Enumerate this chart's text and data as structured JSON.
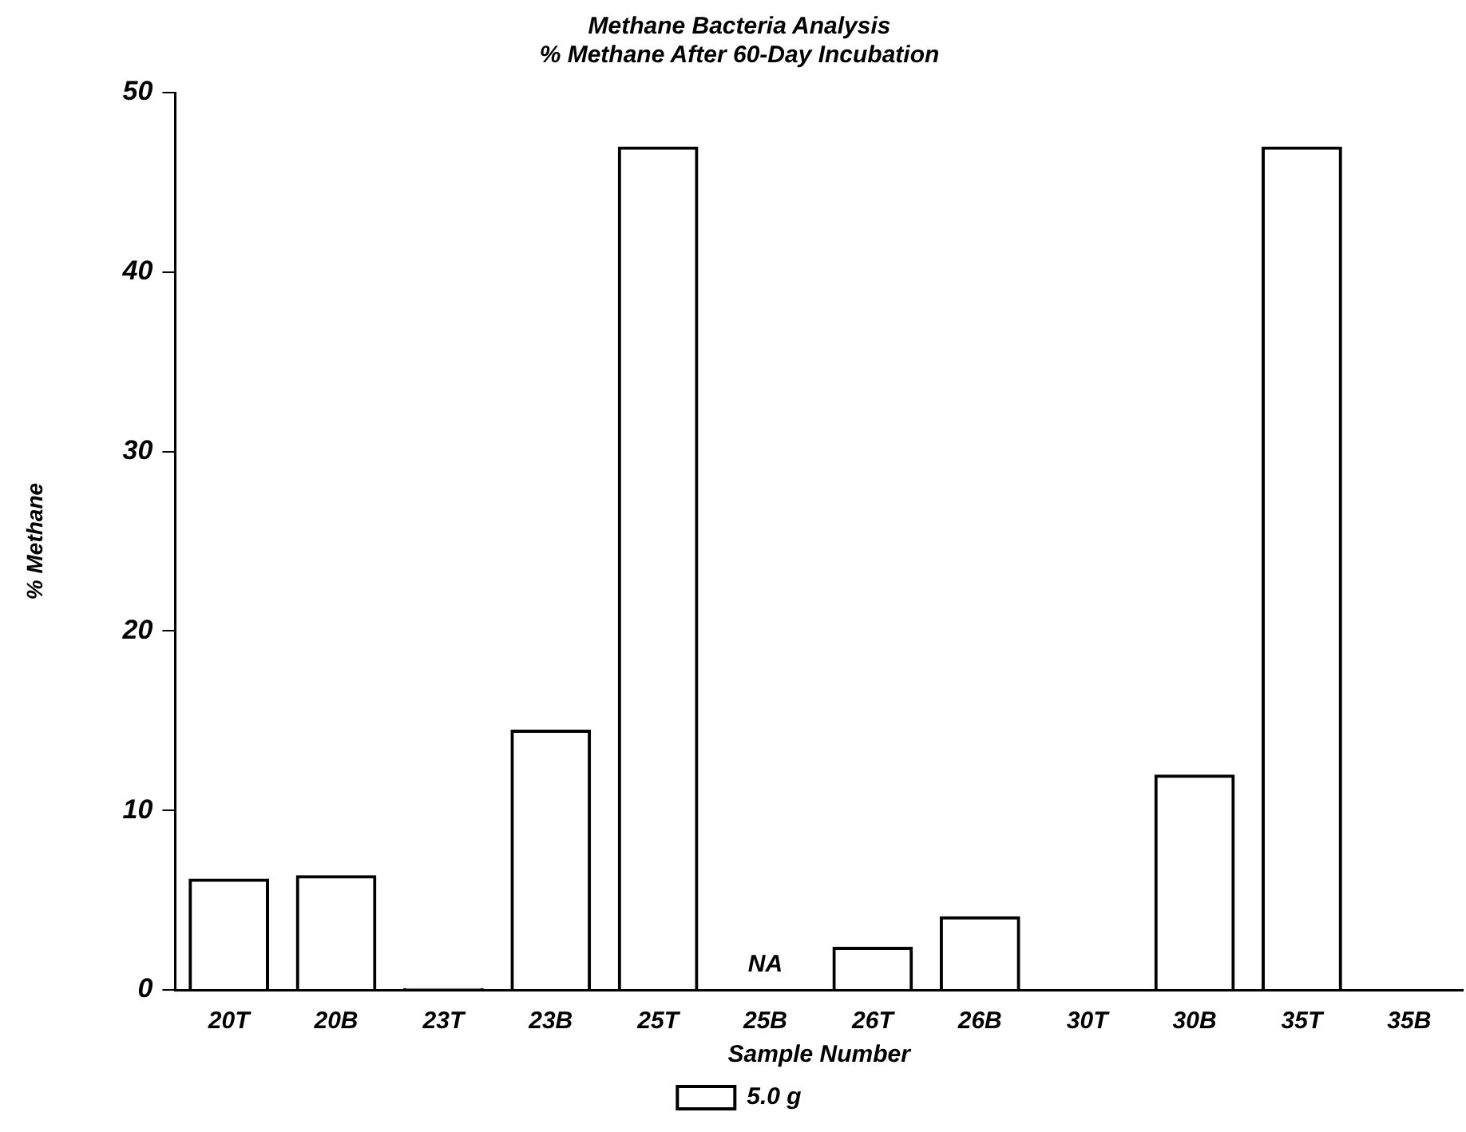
{
  "chart_data": {
    "type": "bar",
    "title": "Methane Bacteria Analysis",
    "subtitle": "% Methane After 60-Day Incubation",
    "xlabel": "Sample Number",
    "ylabel": "% Methane",
    "categories": [
      "20T",
      "20B",
      "23T",
      "23B",
      "25T",
      "25B",
      "26T",
      "26B",
      "30T",
      "30B",
      "35T",
      "35B"
    ],
    "series": [
      {
        "name": "5.0 g",
        "color": "#000000",
        "values": [
          6.2,
          6.4,
          0.1,
          14.5,
          47,
          null,
          2.4,
          4.1,
          0,
          12,
          47,
          0
        ]
      }
    ],
    "annotations": [
      "NA"
    ],
    "ylim": [
      0,
      50
    ],
    "yticks": [
      0,
      10,
      20,
      30,
      40,
      50
    ],
    "grid": false,
    "legend": "bottom"
  }
}
